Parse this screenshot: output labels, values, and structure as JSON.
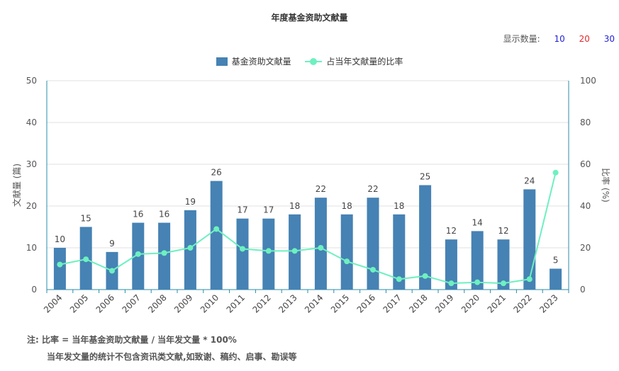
{
  "title": "年度基金资助文献量",
  "display_count": {
    "label": "显示数量:",
    "options": [
      {
        "text": "10",
        "color": "#1f1fd6"
      },
      {
        "text": "20",
        "color": "#e0282e"
      },
      {
        "text": "30",
        "color": "#1f1fd6"
      }
    ]
  },
  "legend": {
    "bar": "基金资助文献量",
    "line": "占当年文献量的比率"
  },
  "notes": {
    "line1": "注:  比率 = 当年基金资助文献量 / 当年发文量 * 100%",
    "line2": "当年发文量的统计不包含资讯类文献,如致谢、稿约、启事、勘误等"
  },
  "chart_data": {
    "type": "bar",
    "categories": [
      "2004",
      "2005",
      "2006",
      "2007",
      "2008",
      "2009",
      "2010",
      "2011",
      "2012",
      "2013",
      "2014",
      "2015",
      "2016",
      "2017",
      "2018",
      "2019",
      "2020",
      "2021",
      "2022",
      "2023"
    ],
    "series": [
      {
        "name": "基金资助文献量",
        "type": "bar",
        "axis": "left",
        "color": "#4682b4",
        "values": [
          10,
          15,
          9,
          16,
          16,
          19,
          26,
          17,
          17,
          18,
          22,
          18,
          22,
          18,
          25,
          12,
          14,
          12,
          24,
          5
        ]
      },
      {
        "name": "占当年文献量的比率",
        "type": "line",
        "axis": "right",
        "color": "#6ef0c0",
        "values": [
          12,
          14.5,
          9,
          17,
          17.5,
          20,
          29,
          19.5,
          18.5,
          18.5,
          20,
          13.5,
          9.5,
          5,
          6.5,
          3,
          3.5,
          3,
          5,
          56
        ]
      }
    ],
    "y_left": {
      "label": "文献量 (篇)",
      "ylim": [
        0,
        50
      ],
      "ticks": [
        0,
        10,
        20,
        30,
        40,
        50
      ]
    },
    "y_right": {
      "label": "比率 (%)",
      "ylim": [
        0,
        100
      ],
      "ticks": [
        0,
        20,
        40,
        60,
        80,
        100
      ]
    },
    "grid": true,
    "legend_position": "top-center"
  }
}
